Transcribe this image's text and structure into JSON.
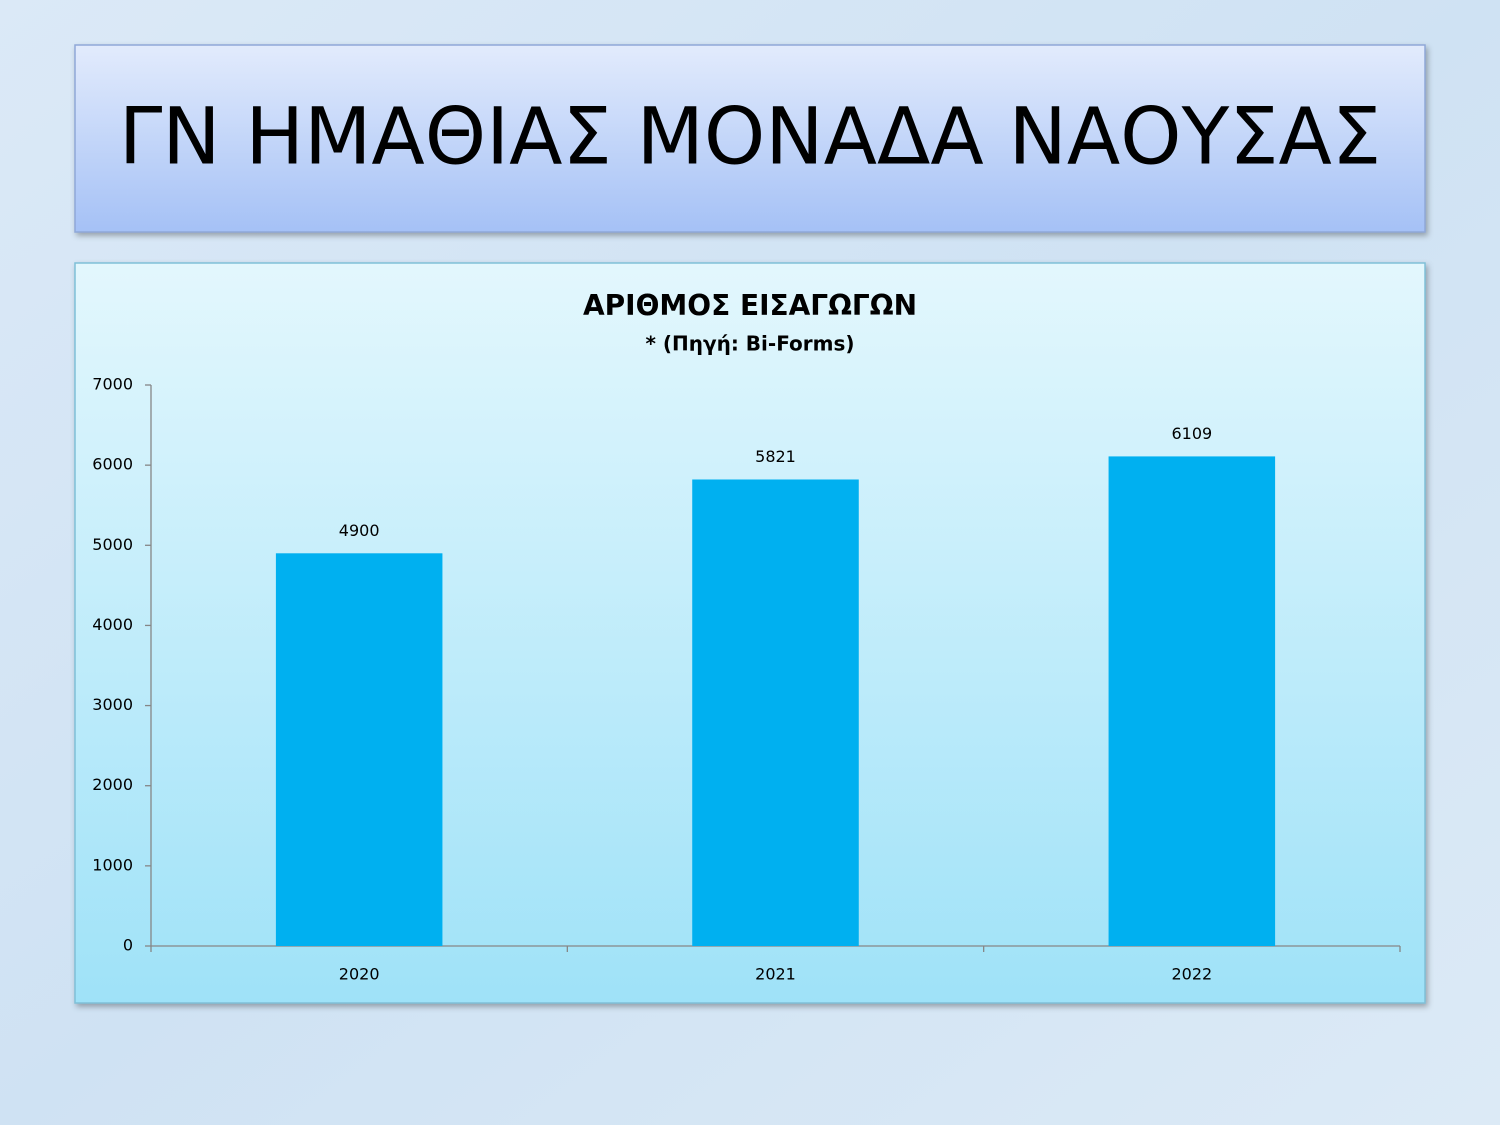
{
  "slide_title": "ΓΝ ΗΜΑΘΙΑΣ ΜΟΝΑΔΑ ΝΑΟΥΣΑΣ",
  "chart_data": {
    "type": "bar",
    "title": "ΑΡΙΘΜΟΣ ΕΙΣΑΓΩΓΩΝ",
    "subtitle": "* (Πηγή: Bi-Forms)",
    "categories": [
      "2020",
      "2021",
      "2022"
    ],
    "values": [
      4900,
      5821,
      6109
    ],
    "color": "#00b0f0",
    "ylim": [
      0,
      7000
    ],
    "yticks": [
      0,
      1000,
      2000,
      3000,
      4000,
      5000,
      6000,
      7000
    ],
    "grid": false
  }
}
